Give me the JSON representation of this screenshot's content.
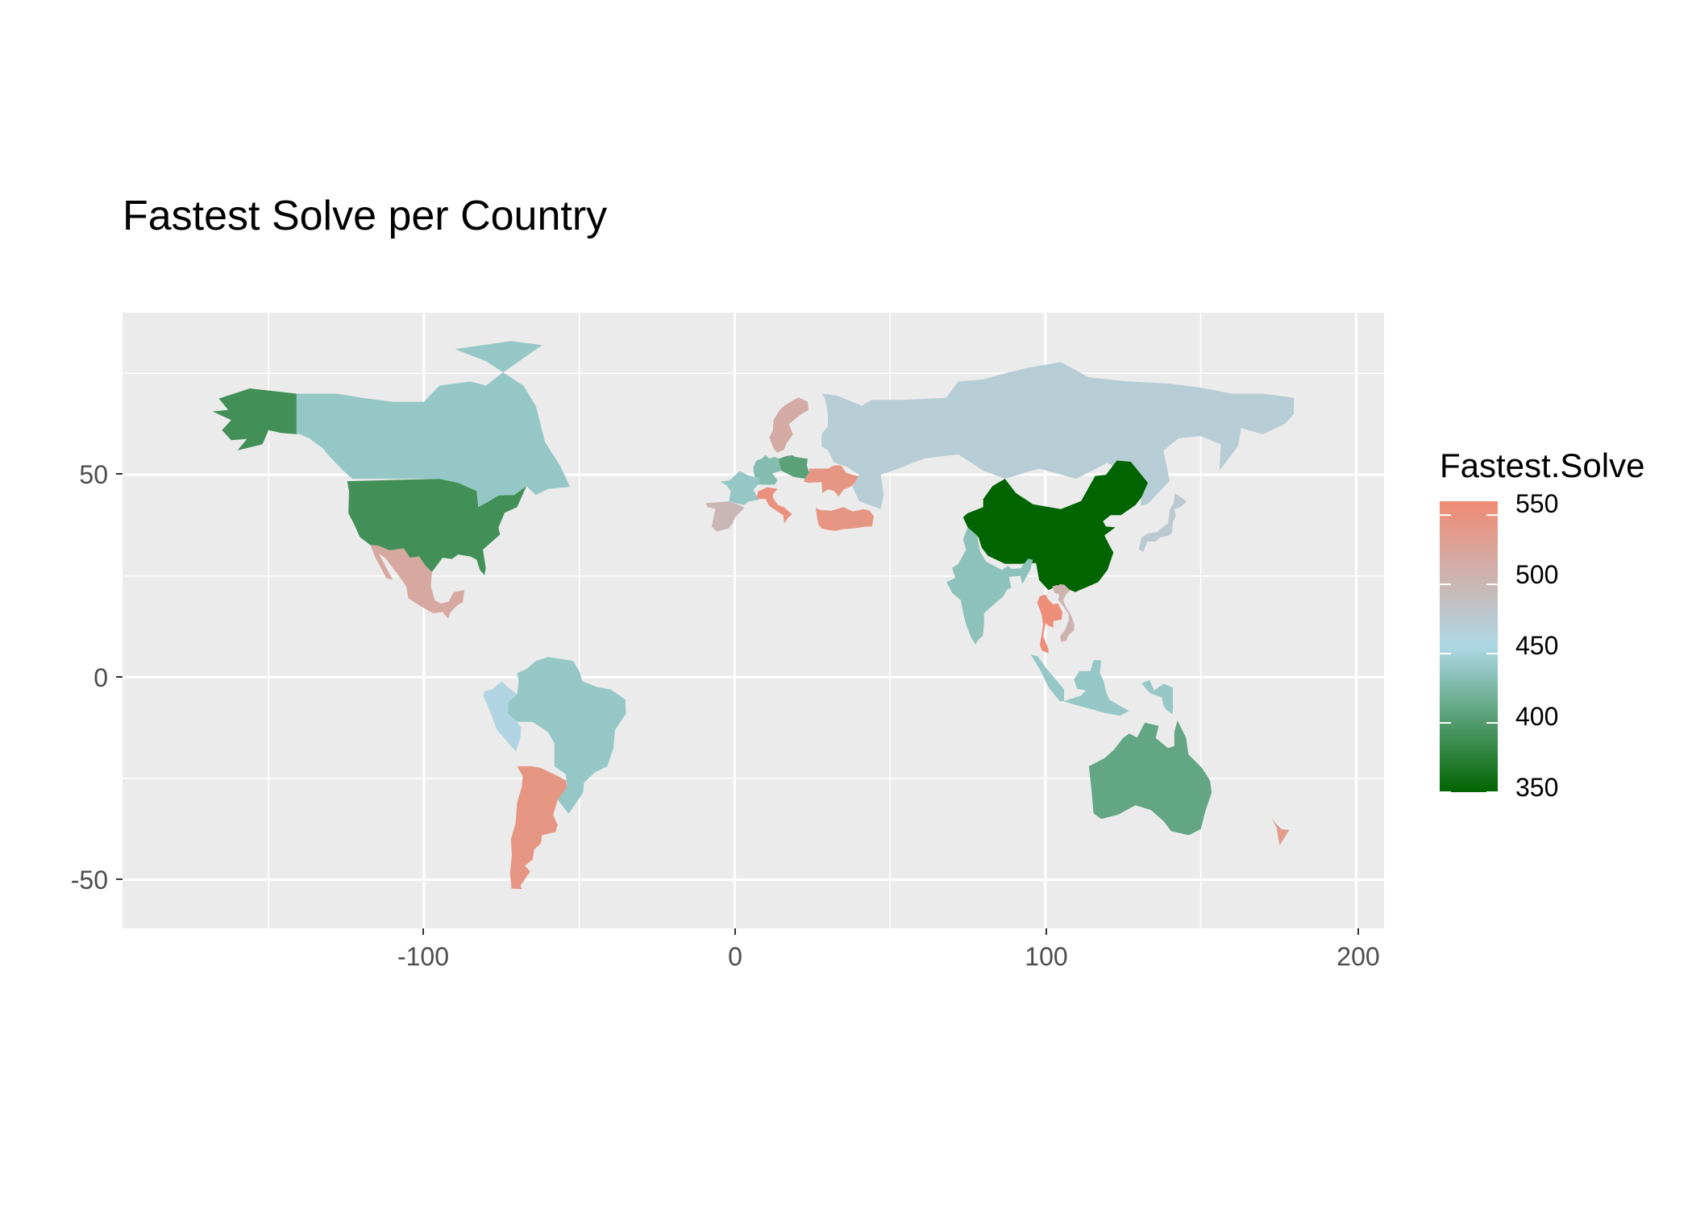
{
  "chart_data": {
    "type": "choropleth",
    "title": "Fastest Solve per Country",
    "xlabel": "",
    "ylabel": "",
    "x_ticks": [
      "-100",
      "0",
      "100",
      "200"
    ],
    "y_ticks": [
      "50",
      "0",
      "-50"
    ],
    "xlim": [
      -197,
      209
    ],
    "ylim": [
      -62,
      90
    ],
    "grid": true,
    "legend": {
      "title": "Fastest.Solve",
      "position": "right",
      "breaks": [
        "550",
        "500",
        "450",
        "400",
        "350"
      ],
      "range": [
        350,
        560
      ],
      "gradient": [
        "#006400",
        "#add8e6",
        "#f08a73"
      ]
    },
    "regions": [
      {
        "name": "Alaska (United States)",
        "value": 390
      },
      {
        "name": "United States",
        "value": 390
      },
      {
        "name": "Canada",
        "value": 440
      },
      {
        "name": "Mexico",
        "value": 520
      },
      {
        "name": "Brazil",
        "value": 440
      },
      {
        "name": "Peru",
        "value": 460
      },
      {
        "name": "Argentina",
        "value": 545
      },
      {
        "name": "Russia",
        "value": 470
      },
      {
        "name": "China",
        "value": 350
      },
      {
        "name": "India",
        "value": 435
      },
      {
        "name": "Thailand",
        "value": 555
      },
      {
        "name": "Australia",
        "value": 410
      },
      {
        "name": "New Zealand",
        "value": 535
      },
      {
        "name": "Japan",
        "value": 475
      },
      {
        "name": "Indonesia",
        "value": 440
      },
      {
        "name": "Sweden",
        "value": 515
      },
      {
        "name": "Poland",
        "value": 405
      },
      {
        "name": "Ukraine",
        "value": 545
      },
      {
        "name": "Turkey",
        "value": 545
      },
      {
        "name": "Italy",
        "value": 550
      },
      {
        "name": "Spain",
        "value": 500
      },
      {
        "name": "France",
        "value": 440
      },
      {
        "name": "Germany",
        "value": 430
      },
      {
        "name": "Vietnam",
        "value": 505
      }
    ]
  }
}
